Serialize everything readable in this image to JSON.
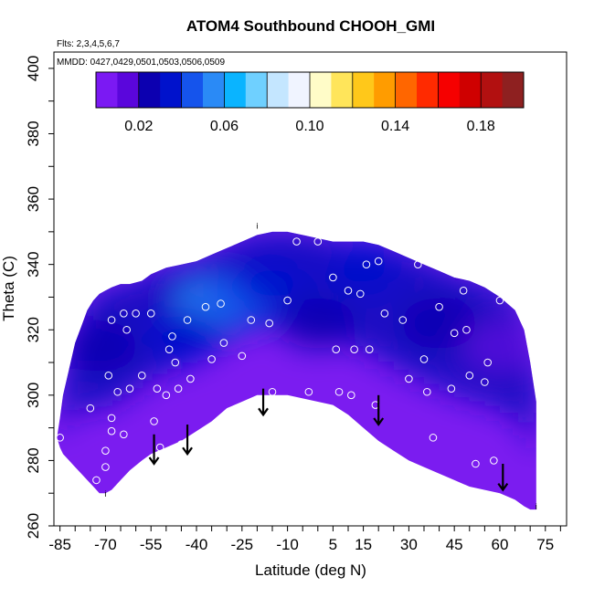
{
  "chart_data": {
    "type": "heatmap",
    "title": "ATOM4 Southbound CHOOH_GMI",
    "flights_label": "Flts: 2,3,4,5,6,7",
    "dates_label": "MMDD: 0427,0429,0501,0503,0506,0509",
    "xlabel": "Latitude (deg N)",
    "ylabel": "Theta (C)",
    "xlim": [
      -87,
      82
    ],
    "ylim": [
      260,
      405
    ],
    "x_ticks": [
      -85,
      -70,
      -55,
      -40,
      -25,
      -10,
      5,
      15,
      30,
      45,
      60,
      75
    ],
    "y_ticks": [
      260,
      280,
      300,
      320,
      340,
      360,
      380,
      400
    ],
    "colorbar": {
      "range": [
        0.0,
        0.2
      ],
      "ticks": [
        0.02,
        0.06,
        0.1,
        0.14,
        0.18
      ],
      "tick_labels": [
        "0.02",
        "0.06",
        "0.10",
        "0.14",
        "0.18"
      ],
      "colors": [
        "#7b19f3",
        "#5a06dc",
        "#0c00b0",
        "#0012cc",
        "#1554ec",
        "#2a8af6",
        "#0ab4ff",
        "#6fd0ff",
        "#c4e6ff",
        "#f0f4ff",
        "#fffcc8",
        "#ffe55a",
        "#ffc81a",
        "#ff9c00",
        "#ff6600",
        "#ff2a00",
        "#f60000",
        "#cf0000",
        "#b21010",
        "#8e2020"
      ]
    },
    "field_outline": {
      "lat": [
        -86,
        -85,
        -84,
        -82,
        -80,
        -78,
        -76,
        -74,
        -72,
        -70,
        -68,
        -65,
        -62,
        -58,
        -55,
        -50,
        -45,
        -40,
        -35,
        -30,
        -25,
        -20,
        -15,
        -10,
        -5,
        0,
        5,
        10,
        15,
        20,
        25,
        30,
        35,
        40,
        45,
        50,
        55,
        60,
        65,
        68,
        70,
        72
      ],
      "theta_top": [
        287,
        293,
        300,
        308,
        316,
        321,
        326,
        329,
        331,
        332,
        333,
        334,
        334,
        335,
        337,
        339,
        340,
        341,
        343,
        345,
        347,
        349,
        350,
        350,
        349,
        348,
        347,
        347,
        347,
        346,
        344,
        342,
        340,
        338,
        336,
        335,
        333,
        330,
        326,
        320,
        310,
        298
      ],
      "theta_bottom": [
        287,
        284,
        282,
        280,
        278,
        276,
        274,
        272,
        270,
        270,
        271,
        274,
        277,
        280,
        282,
        284,
        286,
        289,
        292,
        296,
        298,
        300,
        300,
        300,
        299,
        298,
        297,
        294,
        290,
        286,
        283,
        280,
        278,
        276,
        274,
        272,
        271,
        270,
        268,
        266,
        265,
        265
      ]
    },
    "field_blobs": [
      {
        "lat": -35,
        "theta": 328,
        "value": 0.052
      },
      {
        "lat": -25,
        "theta": 330,
        "value": 0.047
      },
      {
        "lat": -45,
        "theta": 318,
        "value": 0.038
      },
      {
        "lat": -15,
        "theta": 335,
        "value": 0.04
      },
      {
        "lat": -72,
        "theta": 315,
        "value": 0.024
      },
      {
        "lat": 0,
        "theta": 322,
        "value": 0.022
      },
      {
        "lat": 40,
        "theta": 322,
        "value": 0.024
      },
      {
        "lat": 60,
        "theta": 315,
        "value": 0.02
      },
      {
        "lat": 15,
        "theta": 338,
        "value": 0.03
      }
    ],
    "observations": [
      {
        "lat": -85,
        "theta": 287
      },
      {
        "lat": -80,
        "theta": 320
      },
      {
        "lat": -75,
        "theta": 296
      },
      {
        "lat": -73,
        "theta": 274
      },
      {
        "lat": -70,
        "theta": 283
      },
      {
        "lat": -70,
        "theta": 278
      },
      {
        "lat": -68,
        "theta": 293
      },
      {
        "lat": -68,
        "theta": 289
      },
      {
        "lat": -66,
        "theta": 301
      },
      {
        "lat": -64,
        "theta": 288
      },
      {
        "lat": -69,
        "theta": 306
      },
      {
        "lat": -68,
        "theta": 323
      },
      {
        "lat": -64,
        "theta": 325
      },
      {
        "lat": -62,
        "theta": 302
      },
      {
        "lat": -63,
        "theta": 320
      },
      {
        "lat": -60,
        "theta": 325
      },
      {
        "lat": -58,
        "theta": 306
      },
      {
        "lat": -55,
        "theta": 325
      },
      {
        "lat": -54,
        "theta": 292
      },
      {
        "lat": -53,
        "theta": 302
      },
      {
        "lat": -52,
        "theta": 284
      },
      {
        "lat": -50,
        "theta": 300
      },
      {
        "lat": -49,
        "theta": 314
      },
      {
        "lat": -48,
        "theta": 318
      },
      {
        "lat": -47,
        "theta": 310
      },
      {
        "lat": -46,
        "theta": 302
      },
      {
        "lat": -45,
        "theta": 285
      },
      {
        "lat": -43,
        "theta": 323
      },
      {
        "lat": -42,
        "theta": 305
      },
      {
        "lat": -40,
        "theta": 287
      },
      {
        "lat": -37,
        "theta": 327
      },
      {
        "lat": -35,
        "theta": 311
      },
      {
        "lat": -32,
        "theta": 328
      },
      {
        "lat": -31,
        "theta": 316
      },
      {
        "lat": -29,
        "theta": 290
      },
      {
        "lat": -25,
        "theta": 312
      },
      {
        "lat": -22,
        "theta": 323
      },
      {
        "lat": -20,
        "theta": 297
      },
      {
        "lat": -16,
        "theta": 322
      },
      {
        "lat": -15,
        "theta": 301
      },
      {
        "lat": -10,
        "theta": 329
      },
      {
        "lat": -7,
        "theta": 347
      },
      {
        "lat": -3,
        "theta": 301
      },
      {
        "lat": 0,
        "theta": 347
      },
      {
        "lat": 5,
        "theta": 336
      },
      {
        "lat": 6,
        "theta": 314
      },
      {
        "lat": 7,
        "theta": 301
      },
      {
        "lat": 10,
        "theta": 332
      },
      {
        "lat": 11,
        "theta": 300
      },
      {
        "lat": 12,
        "theta": 314
      },
      {
        "lat": 14,
        "theta": 331
      },
      {
        "lat": 16,
        "theta": 340
      },
      {
        "lat": 17,
        "theta": 314
      },
      {
        "lat": 19,
        "theta": 297
      },
      {
        "lat": 20,
        "theta": 341
      },
      {
        "lat": 22,
        "theta": 325
      },
      {
        "lat": 25,
        "theta": 346
      },
      {
        "lat": 28,
        "theta": 323
      },
      {
        "lat": 30,
        "theta": 305
      },
      {
        "lat": 33,
        "theta": 340
      },
      {
        "lat": 35,
        "theta": 311
      },
      {
        "lat": 36,
        "theta": 301
      },
      {
        "lat": 38,
        "theta": 287
      },
      {
        "lat": 40,
        "theta": 327
      },
      {
        "lat": 44,
        "theta": 302
      },
      {
        "lat": 45,
        "theta": 319
      },
      {
        "lat": 48,
        "theta": 332
      },
      {
        "lat": 49,
        "theta": 320
      },
      {
        "lat": 50,
        "theta": 306
      },
      {
        "lat": 52,
        "theta": 279
      },
      {
        "lat": 55,
        "theta": 304
      },
      {
        "lat": 56,
        "theta": 310
      },
      {
        "lat": 58,
        "theta": 280
      },
      {
        "lat": 60,
        "theta": 329
      }
    ],
    "arrows": [
      {
        "lat": -54,
        "theta_start": 288,
        "theta_end": 279
      },
      {
        "lat": -43,
        "theta_start": 291,
        "theta_end": 282
      },
      {
        "lat": -18,
        "theta_start": 302,
        "theta_end": 294
      },
      {
        "lat": 20,
        "theta_start": 300,
        "theta_end": 291
      },
      {
        "lat": 61,
        "theta_start": 279,
        "theta_end": 271
      }
    ],
    "markers": [
      {
        "lat": -20,
        "theta": 351,
        "label": "i"
      },
      {
        "lat": -70,
        "theta": 269,
        "label": "i"
      },
      {
        "lat": 72,
        "theta": 265,
        "label": "i"
      }
    ]
  }
}
